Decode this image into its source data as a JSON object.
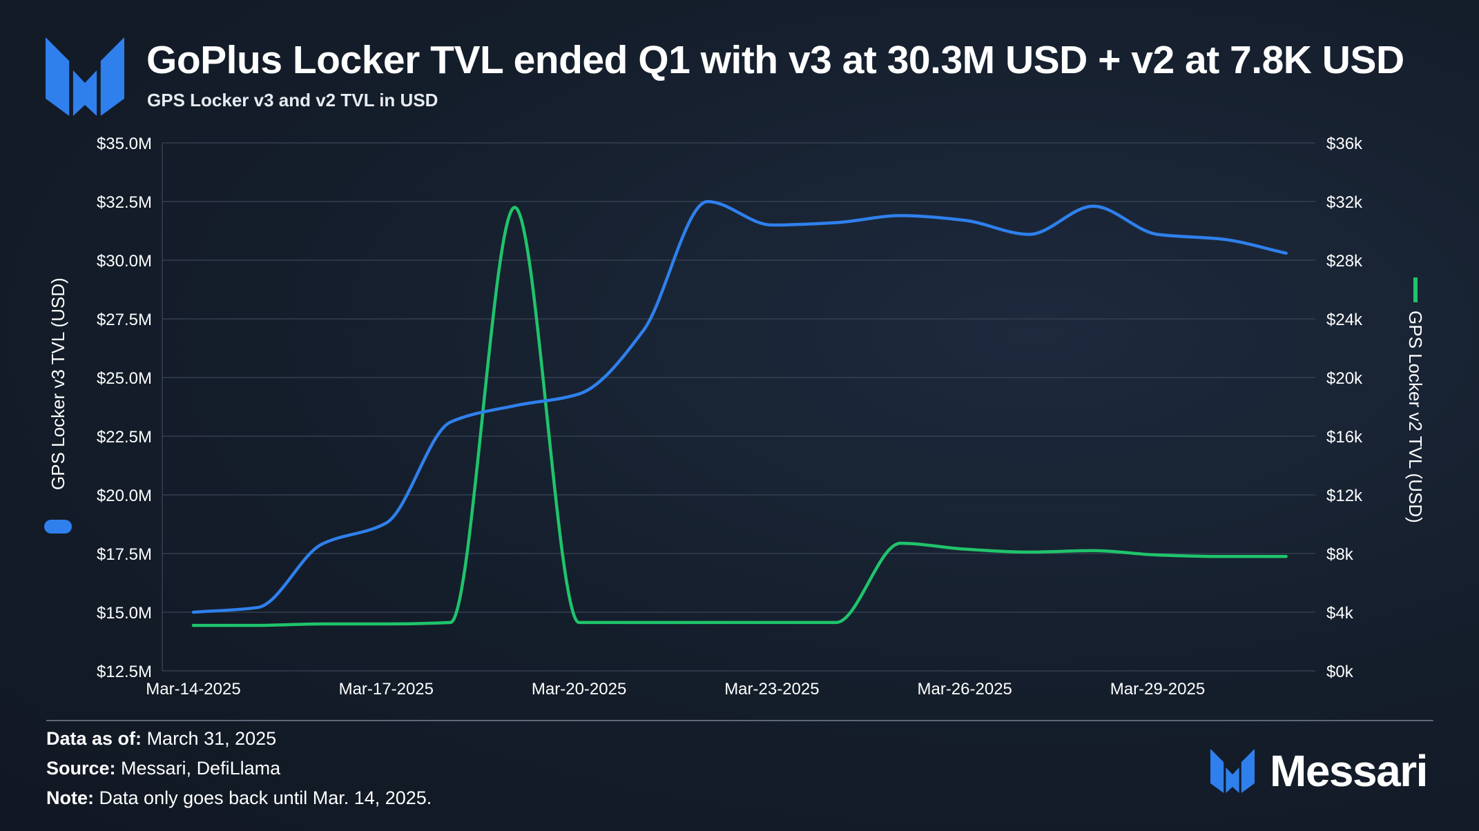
{
  "header": {
    "title": "GoPlus Locker TVL ended Q1 with v3 at 30.3M USD + v2 at 7.8K USD",
    "subtitle": "GPS Locker v3 and v2 TVL in USD"
  },
  "footer": {
    "data_as_of_label": "Data as of:",
    "data_as_of_value": "March 31, 2025",
    "source_label": "Source:",
    "source_value": "Messari, DefiLlama",
    "note_label": "Note:",
    "note_value": "Data only goes back until Mar. 14, 2025."
  },
  "brand": {
    "name": "Messari",
    "logo_icon": "messari-logo-icon"
  },
  "colors": {
    "v3": "#2f80ed",
    "v2": "#1fc46b",
    "grid": "#3a4556",
    "background": "#141d2a"
  },
  "chart_data": {
    "type": "line",
    "title": "GoPlus Locker TVL ended Q1 with v3 at 30.3M USD + v2 at 7.8K USD",
    "subtitle": "GPS Locker v3 and v2 TVL in USD",
    "x": [
      "Mar-14-2025",
      "Mar-15-2025",
      "Mar-16-2025",
      "Mar-17-2025",
      "Mar-18-2025",
      "Mar-19-2025",
      "Mar-20-2025",
      "Mar-21-2025",
      "Mar-22-2025",
      "Mar-23-2025",
      "Mar-24-2025",
      "Mar-25-2025",
      "Mar-26-2025",
      "Mar-27-2025",
      "Mar-28-2025",
      "Mar-29-2025",
      "Mar-30-2025",
      "Mar-31-2025"
    ],
    "x_tick_labels": [
      "Mar-14-2025",
      "Mar-17-2025",
      "Mar-20-2025",
      "Mar-23-2025",
      "Mar-26-2025",
      "Mar-29-2025"
    ],
    "series": [
      {
        "name": "GPS Locker v3 TVL (USD)",
        "axis": "left",
        "values": [
          15.0,
          15.2,
          17.9,
          18.8,
          23.1,
          23.8,
          24.3,
          27.0,
          32.5,
          31.5,
          31.6,
          31.9,
          31.7,
          31.1,
          32.3,
          31.1,
          30.9,
          30.3
        ]
      },
      {
        "name": "GPS Locker v2 TVL (USD)",
        "axis": "right",
        "values": [
          3.1,
          3.1,
          3.2,
          3.2,
          3.3,
          31.6,
          3.3,
          3.3,
          3.3,
          3.3,
          3.3,
          8.7,
          8.3,
          8.1,
          8.2,
          7.9,
          7.8,
          7.8
        ]
      }
    ],
    "y_left": {
      "label": "GPS Locker v3 TVL (USD)",
      "unit": "M",
      "range": [
        12.5,
        35.0
      ],
      "ticks": [
        12.5,
        15.0,
        17.5,
        20.0,
        22.5,
        25.0,
        27.5,
        30.0,
        32.5,
        35.0
      ],
      "tick_labels": [
        "$12.5M",
        "$15.0M",
        "$17.5M",
        "$20.0M",
        "$22.5M",
        "$25.0M",
        "$27.5M",
        "$30.0M",
        "$32.5M",
        "$35.0M"
      ]
    },
    "y_right": {
      "label": "GPS Locker v2 TVL (USD)",
      "unit": "k",
      "range": [
        0,
        36
      ],
      "ticks": [
        0,
        4,
        8,
        12,
        16,
        20,
        24,
        28,
        32,
        36
      ],
      "tick_labels": [
        "$0k",
        "$4k",
        "$8k",
        "$12k",
        "$16k",
        "$20k",
        "$24k",
        "$28k",
        "$32k",
        "$36k"
      ]
    },
    "grid": true
  }
}
